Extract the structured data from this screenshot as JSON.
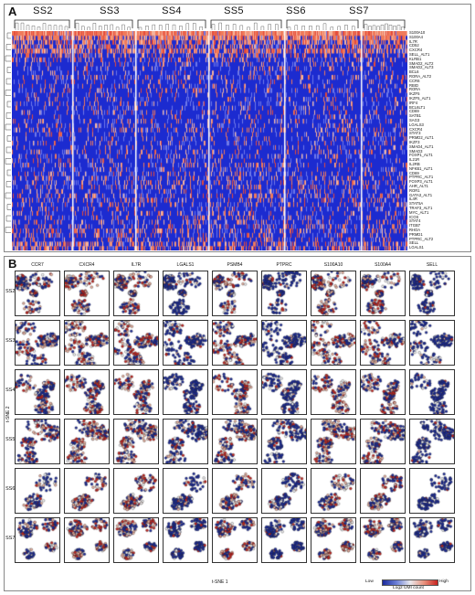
{
  "panel_a": {
    "letter": "A",
    "subsets": [
      "SS2",
      "SS3",
      "SS4",
      "SS5",
      "SS6",
      "SS7"
    ],
    "genes": [
      "S100A10",
      "S100A4",
      "IL7R",
      "CD52",
      "CXCR4",
      "SELL_ALT1",
      "KLRB1",
      "SMAD2_ALT2",
      "SMAD2_ALT3",
      "BCL6",
      "RORA_ALT2",
      "CCR6",
      "RBID",
      "RORA",
      "IKZF5",
      "IKZF5_ALT1",
      "IRF4",
      "BCL6LT1",
      "CD69",
      "SATB1",
      "SAG3",
      "LGALS3",
      "CXCR4",
      "STAT3",
      "PRMD2_ALT1",
      "IKZF3",
      "SMAD4_ALT1",
      "SMAD3",
      "FOXP1_ALT1",
      "IL21R",
      "IL2RB",
      "NFKB1_ALT1",
      "CD69",
      "PTPRC_ALT1",
      "FOXP3_ALT1",
      "AHR_ALT1",
      "ROR1",
      "GATA3_ALT1",
      "IL4R",
      "STAT5A",
      "TRAF3_ALT1",
      "MYC_ALT1",
      "ICOS",
      "STAT4",
      "ITGB7",
      "RHOA",
      "PRMD1",
      "PTPRC_ALT2",
      "SELL",
      "LGALS1"
    ]
  },
  "panel_b": {
    "letter": "B",
    "columns": [
      "CCR7",
      "CXCR4",
      "IL7R",
      "LGALS1",
      "PSMB4",
      "PTPRC",
      "S100A10",
      "S100A4",
      "SELL"
    ],
    "rows": [
      "SS2",
      "SS3",
      "SS4",
      "SS5",
      "SS6",
      "SS7"
    ],
    "x_axis_label": "t-SNE 1",
    "y_axis_label": "t-SNE 2",
    "legend_low": "Low",
    "legend_high": "High",
    "legend_title": "Log2 UMI count"
  },
  "colors": {
    "low": "#1a2a9c",
    "mid": "#e9e9ee",
    "high": "#c8231f"
  }
}
